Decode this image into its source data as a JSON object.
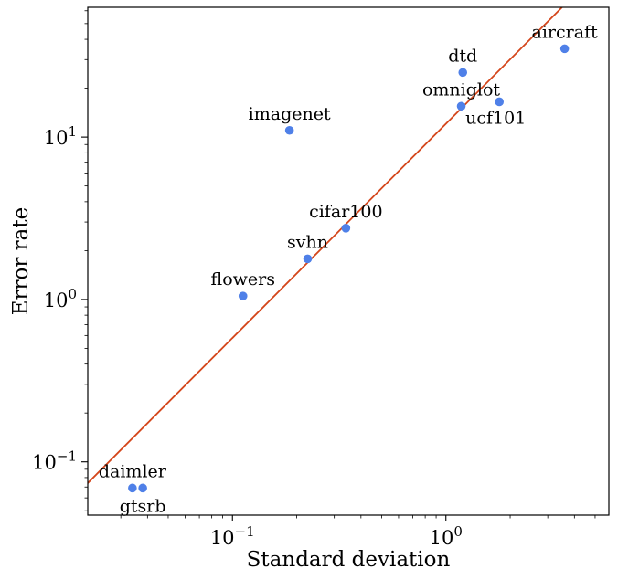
{
  "chart_data": {
    "type": "scatter",
    "title": "",
    "xlabel": "Standard deviation",
    "ylabel": "Error rate",
    "xscale": "log",
    "yscale": "log",
    "xlim": [
      0.021,
      5.8
    ],
    "ylim": [
      0.047,
      63
    ],
    "grid": false,
    "x_tick_values": [
      0.1,
      1
    ],
    "y_tick_values": [
      0.1,
      1,
      10
    ],
    "points": [
      {
        "label": "aircraft",
        "x": 3.6,
        "y": 35
      },
      {
        "label": "dtd",
        "x": 1.2,
        "y": 25
      },
      {
        "label": "omniglot",
        "x": 1.18,
        "y": 15.5
      },
      {
        "label": "ucf101",
        "x": 1.78,
        "y": 16.5
      },
      {
        "label": "imagenet",
        "x": 0.185,
        "y": 11
      },
      {
        "label": "cifar100",
        "x": 0.34,
        "y": 2.75
      },
      {
        "label": "svhn",
        "x": 0.225,
        "y": 1.78
      },
      {
        "label": "flowers",
        "x": 0.112,
        "y": 1.05
      },
      {
        "label": "daimler",
        "x": 0.034,
        "y": 0.069
      },
      {
        "label": "gtsrb",
        "x": 0.038,
        "y": 0.069
      }
    ],
    "fit_line": {
      "x": [
        0.021,
        3.5
      ],
      "y": [
        0.074,
        63
      ]
    },
    "colors": {
      "points": "#4f80e8",
      "fit_line": "#d4461b",
      "axes": "#000000"
    }
  }
}
